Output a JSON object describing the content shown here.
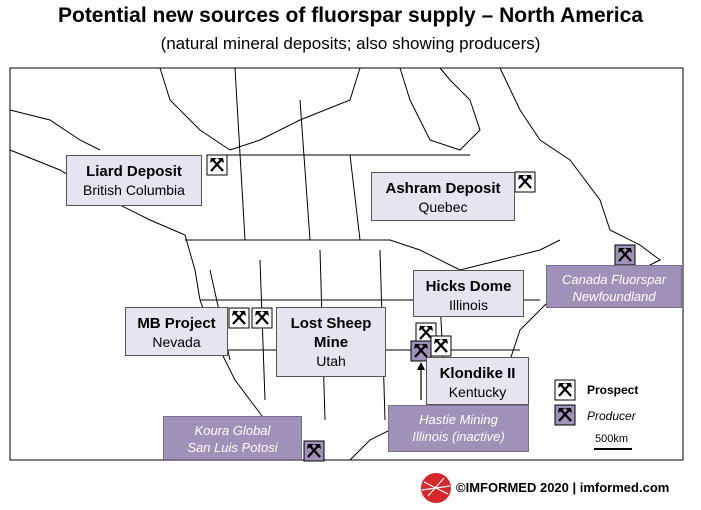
{
  "header": {
    "title": "Potential new sources of fluorspar supply – North America",
    "subtitle": "(natural mineral deposits; also showing producers)"
  },
  "deposits": [
    {
      "name": "Liard Deposit",
      "location": "British Columbia"
    },
    {
      "name": "Ashram Deposit",
      "location": "Quebec"
    },
    {
      "name": "Hicks Dome",
      "location": "Illinois"
    },
    {
      "name": "MB Project",
      "location": "Nevada"
    },
    {
      "name": "Lost Sheep Mine",
      "location": "Utah"
    },
    {
      "name": "Klondike II",
      "location": "Kentucky"
    }
  ],
  "producers": [
    {
      "name": "Canada Fluorspar",
      "location": "Newfoundland"
    },
    {
      "name": "Koura Global",
      "location": "San Luis Potosi"
    },
    {
      "name": "Hastie Mining",
      "location": "Illinois (inactive)"
    }
  ],
  "legend": {
    "prospect": "Prospect",
    "producer": "Producer",
    "scale": "500km"
  },
  "footer": {
    "text": "©IMFORMED 2020  | imformed.com"
  }
}
